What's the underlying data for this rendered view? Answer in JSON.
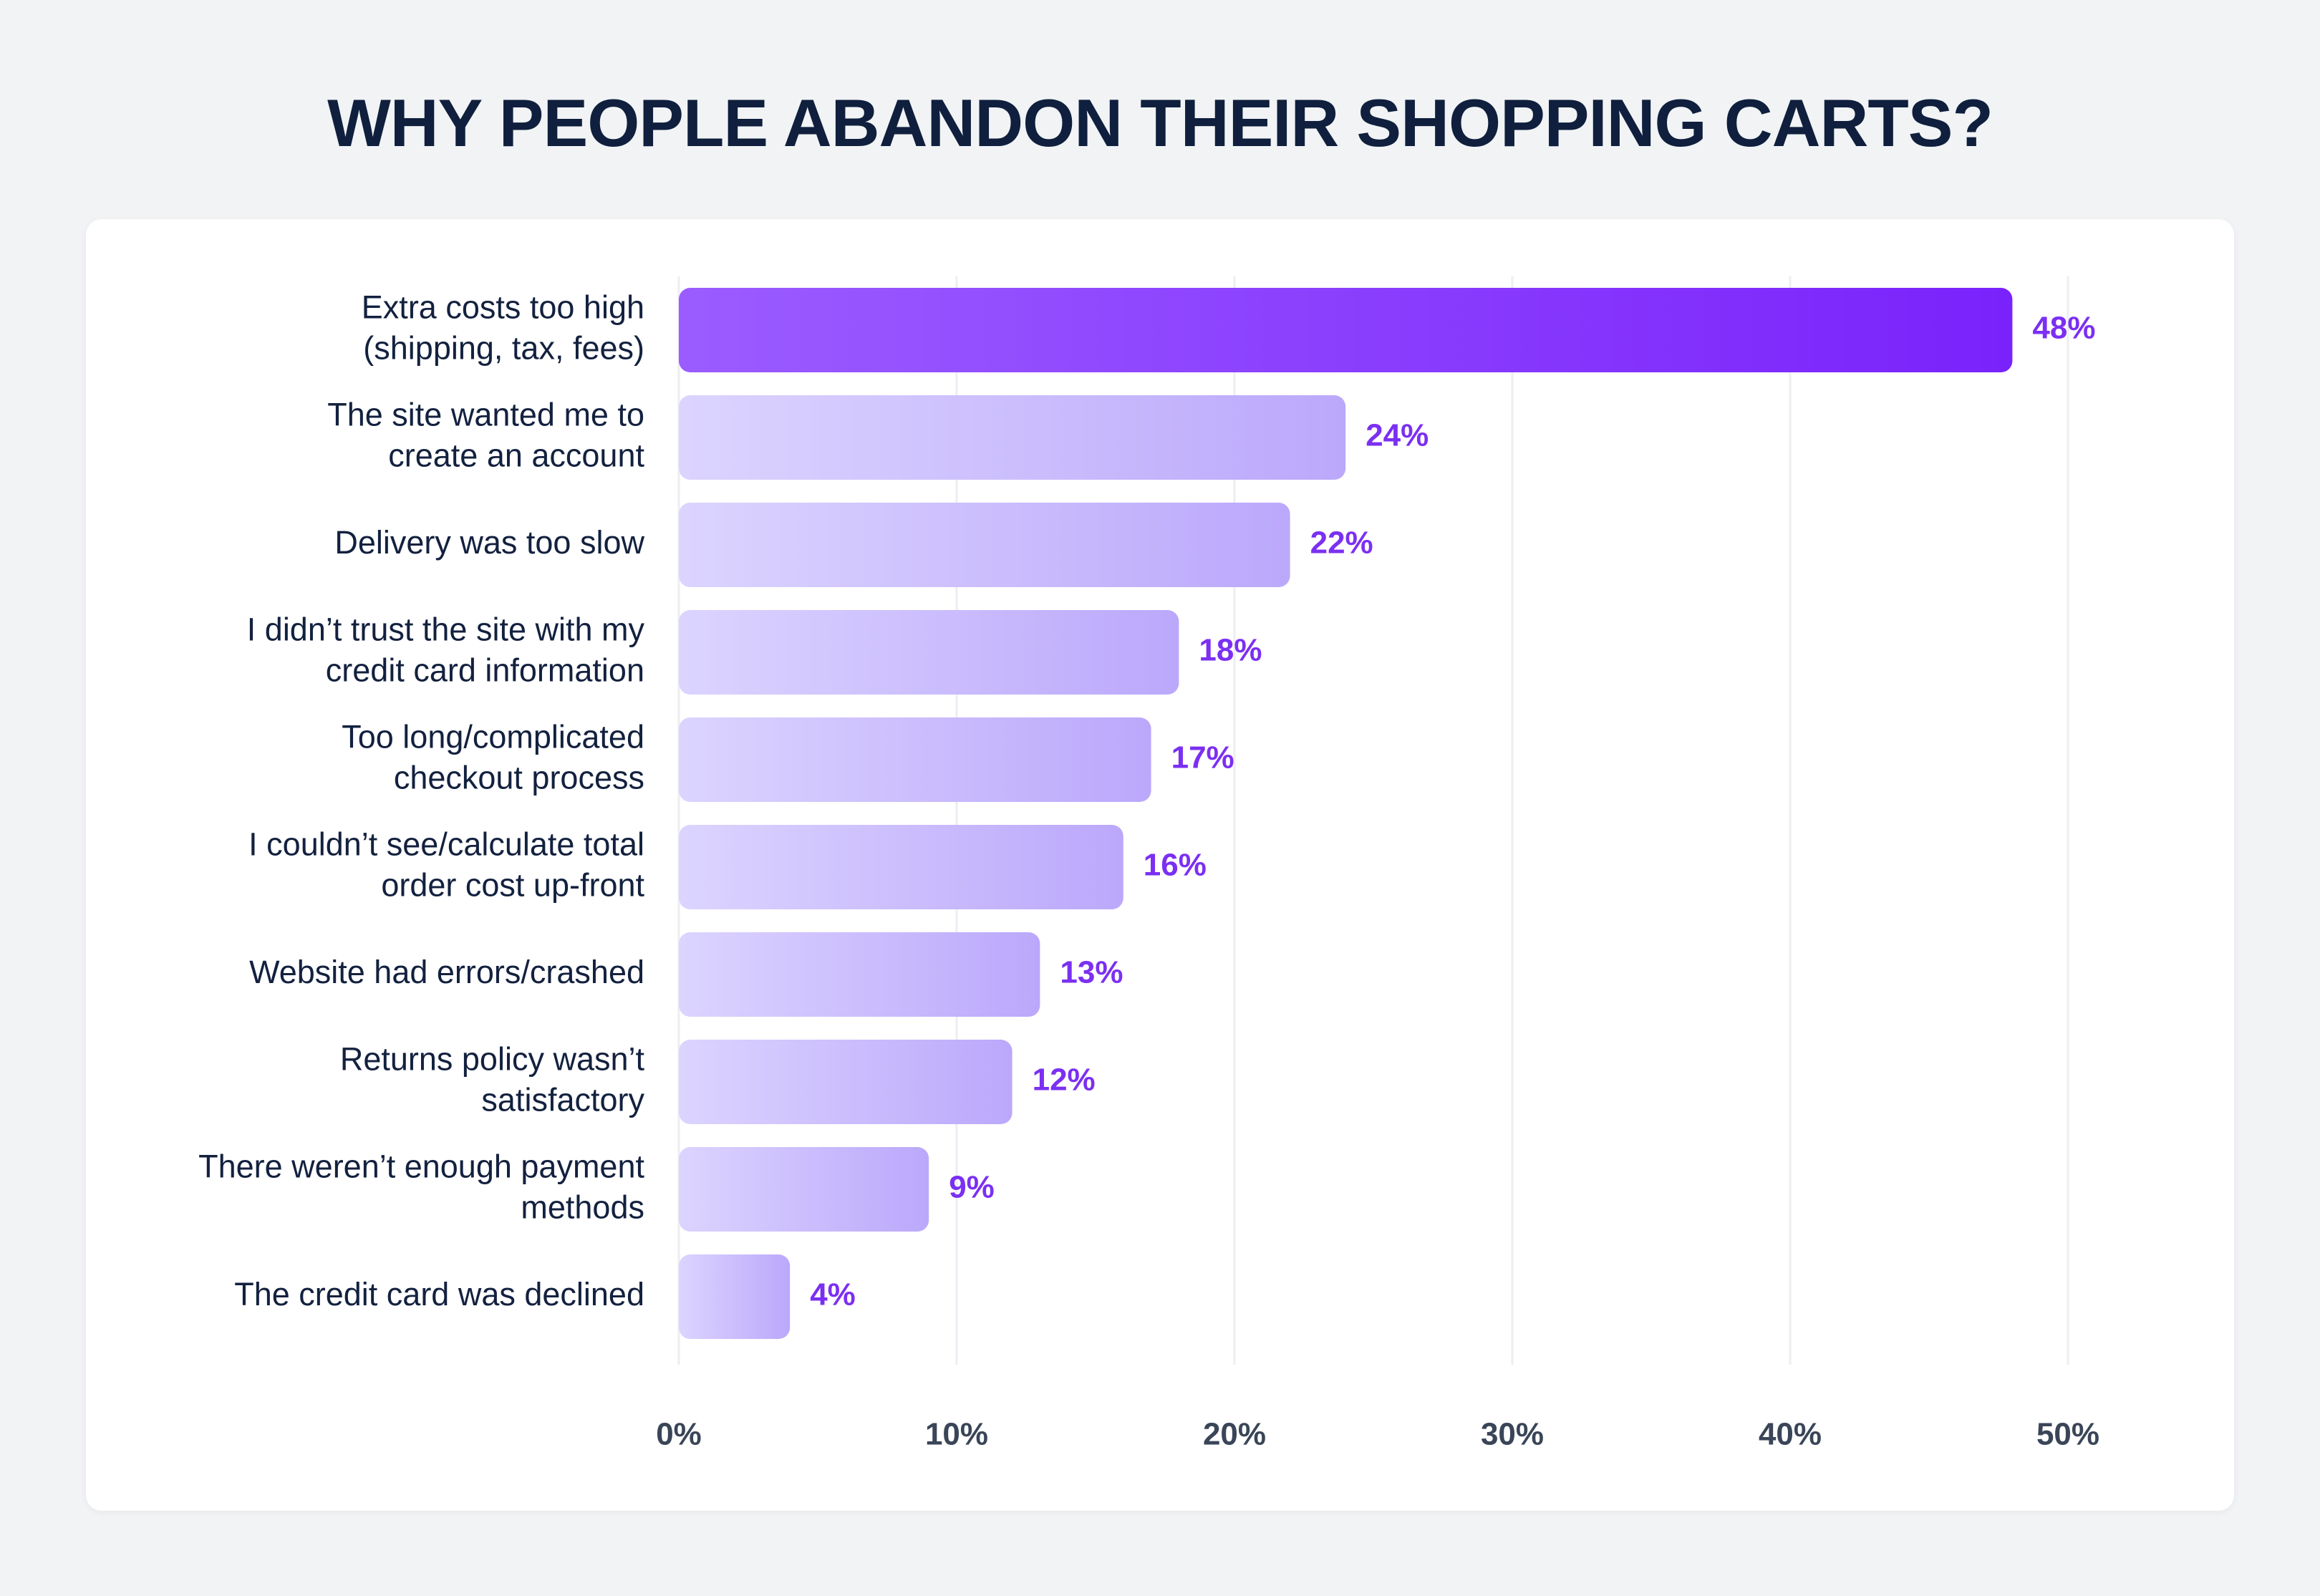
{
  "chart_data": {
    "type": "bar",
    "orientation": "horizontal",
    "title": "WHY PEOPLE ABANDON THEIR SHOPPING CARTS?",
    "categories": [
      [
        "Extra costs too high",
        "(shipping, tax, fees)"
      ],
      [
        "The site wanted me to",
        "create an account"
      ],
      [
        "Delivery was too slow"
      ],
      [
        "I didn’t trust the site with my",
        "credit card information"
      ],
      [
        "Too long/complicated",
        "checkout process"
      ],
      [
        "I couldn’t see/calculate total",
        "order cost up-front"
      ],
      [
        "Website had errors/crashed"
      ],
      [
        "Returns policy wasn’t",
        "satisfactory"
      ],
      [
        "There weren’t enough payment",
        "methods"
      ],
      [
        "The credit card was declined"
      ]
    ],
    "values": [
      48,
      24,
      22,
      18,
      17,
      16,
      13,
      12,
      9,
      4
    ],
    "value_labels": [
      "48%",
      "24%",
      "22%",
      "18%",
      "17%",
      "16%",
      "13%",
      "12%",
      "9%",
      "4%"
    ],
    "xticks": [
      0,
      10,
      20,
      30,
      40,
      50
    ],
    "xtick_labels": [
      "0%",
      "10%",
      "20%",
      "30%",
      "40%",
      "50%"
    ],
    "xlim": [
      0,
      50
    ],
    "xlabel": "",
    "ylabel": "",
    "grid": true,
    "colors": {
      "highlight_start": "#9b5cff",
      "highlight_end": "#7a22fb",
      "bar_start": "#dcd4ff",
      "bar_end": "#bba8fb",
      "value_text": "#7b2ff2",
      "grid": "#eceef2"
    }
  }
}
